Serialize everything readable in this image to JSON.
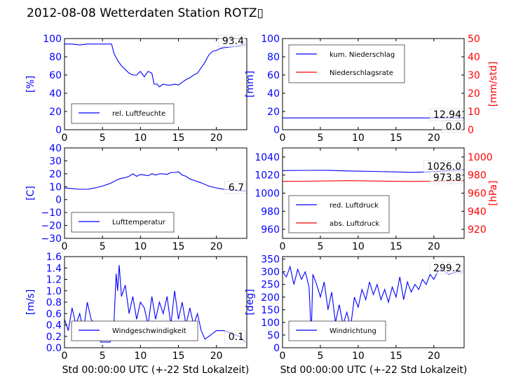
{
  "title": "2012-08-08 Wetterdaten Station ROTZ▯",
  "xlabel": "Std 00:00:00 UTC (+-22 Std Lokalzeit)",
  "colors": {
    "primary": "#0000ff",
    "secondary": "#ff0000",
    "fill": "#8080ff"
  },
  "chart_data": [
    {
      "type": "line",
      "id": "humidity",
      "ylabel": "[%]",
      "xlim": [
        0,
        24
      ],
      "xticks": [
        0,
        5,
        10,
        15,
        20
      ],
      "ylim": [
        0,
        100
      ],
      "yticks": [
        0,
        20,
        40,
        60,
        80,
        100
      ],
      "legend": [
        "rel. Luftfeuchte"
      ],
      "legend_position": "lower-left",
      "current_value": "93.4",
      "series": [
        {
          "x": [
            0,
            1,
            2,
            3,
            4,
            5,
            6.2,
            6.5,
            7,
            7.5,
            8,
            8.5,
            9,
            9.5,
            10,
            10.5,
            11,
            11.5,
            11.8,
            12.2,
            12.5,
            13,
            13.5,
            14,
            14.5,
            15,
            15.5,
            16,
            16.5,
            17,
            17.5,
            18,
            18.5,
            19,
            19.5,
            20,
            20.5,
            21,
            22,
            23,
            23.8
          ],
          "y": [
            94,
            94,
            93,
            94,
            94,
            94,
            94,
            84,
            76,
            70,
            66,
            62,
            60,
            60,
            64,
            58,
            64,
            62,
            50,
            50,
            47,
            50,
            49,
            49,
            50,
            49,
            52,
            55,
            57,
            60,
            62,
            68,
            74,
            82,
            86,
            87,
            89,
            90,
            91,
            92,
            93.4
          ]
        }
      ]
    },
    {
      "type": "line",
      "id": "precipitation",
      "ylabel": "[mm]",
      "y2label": "[mm/std]",
      "xlim": [
        0,
        24
      ],
      "xticks": [
        0,
        5,
        10,
        15,
        20
      ],
      "ylim": [
        0,
        100
      ],
      "yticks": [
        0,
        20,
        40,
        60,
        80,
        100
      ],
      "y2lim": [
        0,
        50
      ],
      "y2ticks": [
        0,
        10,
        20,
        30,
        40,
        50
      ],
      "legend": [
        "kum. Niederschlag",
        "Niederschlagsrate"
      ],
      "legend_position": "upper-left",
      "current_values": [
        "12.94",
        "0.0"
      ],
      "series": [
        {
          "name": "kum. Niederschlag",
          "x": [
            0,
            24
          ],
          "y": [
            12.94,
            12.94
          ]
        },
        {
          "name": "Niederschlagsrate",
          "axis": "right",
          "x": [
            0,
            24
          ],
          "y": [
            0,
            0
          ]
        }
      ]
    },
    {
      "type": "line",
      "id": "temperature",
      "ylabel": "[C]",
      "xlim": [
        0,
        24
      ],
      "xticks": [
        0,
        5,
        10,
        15,
        20
      ],
      "ylim": [
        -30,
        40
      ],
      "yticks": [
        -30,
        -20,
        -10,
        0,
        10,
        20,
        30,
        40
      ],
      "legend": [
        "Lufttemperatur"
      ],
      "legend_position": "lower-left",
      "current_value": "6.7",
      "series": [
        {
          "x": [
            0,
            1,
            2,
            3,
            4,
            5,
            6,
            6.5,
            7,
            7.5,
            8,
            8.5,
            9,
            9.5,
            10,
            10.5,
            11,
            11.5,
            12,
            12.5,
            13,
            13.5,
            14,
            14.5,
            15,
            15.5,
            16,
            16.5,
            17,
            18,
            19,
            20,
            21,
            22,
            23,
            23.8
          ],
          "y": [
            9,
            8.5,
            8,
            8,
            9,
            10.5,
            12.5,
            14,
            15.5,
            16.5,
            17,
            18,
            20,
            18,
            19.5,
            19,
            18.5,
            20,
            19,
            20,
            20,
            19.5,
            21,
            21,
            21.5,
            19,
            18,
            16,
            15,
            13,
            10.5,
            9,
            8,
            7.5,
            7,
            6.7
          ]
        }
      ]
    },
    {
      "type": "line",
      "id": "pressure",
      "ylabel": "",
      "y2label": "[hPa]",
      "xlim": [
        0,
        24
      ],
      "xticks": [
        0,
        5,
        10,
        15,
        20
      ],
      "ylim": [
        950,
        1050
      ],
      "yticks": [
        960,
        980,
        1000,
        1020,
        1040
      ],
      "y2lim": [
        910,
        1010
      ],
      "y2ticks": [
        920,
        940,
        960,
        980,
        1000
      ],
      "legend": [
        "red. Luftdruck",
        "abs. Luftdruck"
      ],
      "legend_position": "lower-left",
      "current_values": [
        "1026.0",
        "973.8"
      ],
      "series": [
        {
          "name": "red. Luftdruck",
          "x": [
            0,
            3,
            6,
            9,
            12,
            15,
            17,
            19,
            21,
            24
          ],
          "y": [
            1025,
            1025.2,
            1025.3,
            1024.5,
            1024,
            1023.5,
            1023,
            1023.4,
            1024.5,
            1026
          ]
        },
        {
          "name": "abs. Luftdruck",
          "axis": "right",
          "x": [
            0,
            3,
            6,
            9,
            12,
            15,
            17,
            19,
            21,
            24
          ],
          "y": [
            973,
            973.2,
            973.5,
            973.8,
            973.4,
            973.1,
            973,
            973.1,
            973.4,
            973.8
          ]
        }
      ]
    },
    {
      "type": "line",
      "id": "wind-speed",
      "ylabel": "[m/s]",
      "xlim": [
        0,
        24
      ],
      "xticks": [
        0,
        5,
        10,
        15,
        20
      ],
      "ylim": [
        0,
        1.6
      ],
      "yticks": [
        0.0,
        0.2,
        0.4,
        0.6,
        0.8,
        1.0,
        1.2,
        1.4,
        1.6
      ],
      "legend": [
        "Windgeschwindigkeit"
      ],
      "legend_position": "lower-center",
      "current_value": "0.1",
      "series": [
        {
          "x": [
            0,
            0.5,
            1,
            1.5,
            2,
            2.5,
            3,
            3.5,
            4,
            4.5,
            4.8,
            5.5,
            6,
            6.5,
            6.8,
            7,
            7.2,
            7.5,
            8,
            8.5,
            9,
            9.5,
            10,
            10.5,
            11,
            11.5,
            12,
            12.5,
            13,
            13.5,
            14,
            14.5,
            15,
            15.5,
            16,
            16.5,
            17,
            17.5,
            18,
            18.5,
            19,
            19.5,
            20,
            21,
            22,
            23,
            23.8
          ],
          "y": [
            0.5,
            0.3,
            0.7,
            0.4,
            0.6,
            0.3,
            0.8,
            0.5,
            0.4,
            0.2,
            0.1,
            0.1,
            0.1,
            0.4,
            1.3,
            1.0,
            1.45,
            0.9,
            1.1,
            0.6,
            0.9,
            0.5,
            0.8,
            0.7,
            0.4,
            0.9,
            0.5,
            0.8,
            0.6,
            0.9,
            0.4,
            1.0,
            0.5,
            0.8,
            0.4,
            0.7,
            0.4,
            0.6,
            0.3,
            0.15,
            0.2,
            0.25,
            0.3,
            0.3,
            0.25,
            0.2,
            0.1
          ]
        }
      ]
    },
    {
      "type": "line",
      "id": "wind-direction",
      "ylabel": "[deg]",
      "xlim": [
        0,
        24
      ],
      "xticks": [
        0,
        5,
        10,
        15,
        20
      ],
      "ylim": [
        0,
        360
      ],
      "yticks": [
        0,
        50,
        100,
        150,
        200,
        250,
        300,
        350
      ],
      "legend": [
        "Windrichtung"
      ],
      "legend_position": "lower-left",
      "current_value": "299.2",
      "series": [
        {
          "x": [
            0,
            0.5,
            1,
            1.5,
            2,
            2.5,
            3,
            3.5,
            3.8,
            4,
            4.5,
            5,
            5.5,
            6,
            6.5,
            7,
            7.5,
            8,
            8.5,
            9,
            9.5,
            10,
            10.5,
            11,
            11.5,
            12,
            12.5,
            13,
            13.5,
            14,
            14.5,
            15,
            15.5,
            16,
            16.5,
            17,
            17.5,
            18,
            18.5,
            19,
            19.5,
            20,
            20.5,
            21,
            22,
            23,
            23.8
          ],
          "y": [
            300,
            280,
            320,
            250,
            310,
            270,
            300,
            240,
            50,
            290,
            250,
            200,
            260,
            150,
            220,
            100,
            170,
            90,
            140,
            80,
            200,
            160,
            230,
            190,
            260,
            210,
            250,
            190,
            230,
            180,
            240,
            200,
            280,
            190,
            260,
            220,
            250,
            230,
            270,
            250,
            290,
            270,
            300,
            310,
            290,
            300,
            299.2
          ]
        }
      ]
    }
  ]
}
